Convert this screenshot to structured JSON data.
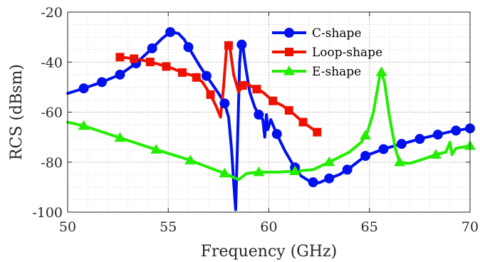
{
  "chart_data": {
    "type": "line",
    "xlabel": "Frequency (GHz)",
    "ylabel": "RCS (dBsm)",
    "xlim": [
      50,
      70
    ],
    "ylim": [
      -100,
      -20
    ],
    "xticks": [
      50,
      55,
      60,
      65,
      70
    ],
    "yticks": [
      -100,
      -80,
      -60,
      -40,
      -20
    ],
    "xtick_labels": [
      "50",
      "55",
      "60",
      "65",
      "70"
    ],
    "ytick_labels": [
      "-100",
      "-80",
      "-60",
      "-40",
      "-20"
    ],
    "grid": "major and minor, dotted",
    "legend_position": "top-right",
    "series": [
      {
        "name": "C-shape",
        "color": "#0011ee",
        "marker": "circle",
        "points": [
          [
            50,
            -52.5
          ],
          [
            50.8,
            -50.5
          ],
          [
            51.7,
            -48
          ],
          [
            52.6,
            -45
          ],
          [
            53.4,
            -40.5
          ],
          [
            54.2,
            -34.5
          ],
          [
            54.7,
            -30.5
          ],
          [
            55.1,
            -28
          ],
          [
            55.5,
            -28.5
          ],
          [
            55.8,
            -31
          ],
          [
            56,
            -34
          ],
          [
            56.3,
            -38
          ],
          [
            56.6,
            -42
          ],
          [
            56.9,
            -45.5
          ],
          [
            57.2,
            -49
          ],
          [
            57.5,
            -52.5
          ],
          [
            57.8,
            -56.5
          ],
          [
            58.0,
            -62
          ],
          [
            58.15,
            -75
          ],
          [
            58.25,
            -88
          ],
          [
            58.35,
            -99
          ],
          [
            58.45,
            -70
          ],
          [
            58.55,
            -40
          ],
          [
            58.62,
            -33
          ],
          [
            58.7,
            -33
          ],
          [
            58.85,
            -42
          ],
          [
            59.05,
            -52
          ],
          [
            59.3,
            -58
          ],
          [
            59.5,
            -61
          ],
          [
            59.7,
            -63
          ],
          [
            59.8,
            -70
          ],
          [
            59.88,
            -61
          ],
          [
            59.95,
            -67
          ],
          [
            60.1,
            -63
          ],
          [
            60.3,
            -67
          ],
          [
            60.5,
            -70.5
          ],
          [
            60.8,
            -75.5
          ],
          [
            61.2,
            -81
          ],
          [
            61.6,
            -85.5
          ],
          [
            62.1,
            -88
          ],
          [
            62.5,
            -88.2
          ],
          [
            63.0,
            -86.5
          ],
          [
            63.5,
            -85
          ],
          [
            64.0,
            -82.5
          ],
          [
            64.8,
            -77.5
          ],
          [
            65.8,
            -74.5
          ],
          [
            66.7,
            -72.5
          ],
          [
            67.6,
            -70.5
          ],
          [
            68.4,
            -69
          ],
          [
            69.2,
            -67.5
          ],
          [
            70,
            -66.5
          ]
        ],
        "marker_x": [
          50.8,
          51.7,
          52.6,
          53.4,
          54.2,
          55.1,
          56.0,
          56.9,
          57.8,
          58.65,
          59.5,
          60.4,
          61.3,
          62.2,
          63.0,
          63.9,
          64.8,
          65.7,
          66.6,
          67.5,
          68.4,
          69.3,
          70.0
        ]
      },
      {
        "name": "Loop-shape",
        "color": "#ee1100",
        "marker": "square",
        "points": [
          [
            52.6,
            -38
          ],
          [
            53.2,
            -38.5
          ],
          [
            53.9,
            -39.5
          ],
          [
            54.6,
            -41
          ],
          [
            55.2,
            -42.5
          ],
          [
            55.8,
            -44.5
          ],
          [
            56.3,
            -45.5
          ],
          [
            56.7,
            -48
          ],
          [
            57.1,
            -53
          ],
          [
            57.4,
            -58
          ],
          [
            57.6,
            -62
          ],
          [
            57.75,
            -50
          ],
          [
            57.9,
            -34
          ],
          [
            58.05,
            -33
          ],
          [
            58.25,
            -45
          ],
          [
            58.5,
            -52
          ],
          [
            58.8,
            -48
          ],
          [
            59.2,
            -50
          ],
          [
            59.7,
            -52
          ],
          [
            60.2,
            -55.5
          ],
          [
            60.7,
            -57.5
          ],
          [
            61.2,
            -60.5
          ],
          [
            61.7,
            -64
          ],
          [
            62.4,
            -68
          ]
        ],
        "marker_x": [
          52.6,
          53.3,
          54.1,
          54.9,
          55.7,
          56.4,
          57.1,
          58.0,
          58.7,
          59.4,
          60.2,
          61.0,
          61.7,
          62.4
        ]
      },
      {
        "name": "E-shape",
        "color": "#22ee00",
        "marker": "triangle",
        "points": [
          [
            50,
            -64
          ],
          [
            50.8,
            -65.5
          ],
          [
            52.5,
            -70
          ],
          [
            54.2,
            -74.5
          ],
          [
            56,
            -79
          ],
          [
            57.8,
            -84.5
          ],
          [
            58.5,
            -87
          ],
          [
            58.9,
            -84.5
          ],
          [
            59.5,
            -84
          ],
          [
            60.5,
            -84
          ],
          [
            61.5,
            -83.5
          ],
          [
            62.2,
            -83
          ],
          [
            63.0,
            -80
          ],
          [
            64.0,
            -76
          ],
          [
            64.6,
            -72
          ],
          [
            64.9,
            -68
          ],
          [
            65.2,
            -60
          ],
          [
            65.5,
            -46
          ],
          [
            65.6,
            -44
          ],
          [
            65.75,
            -48
          ],
          [
            66.0,
            -62
          ],
          [
            66.3,
            -75
          ],
          [
            66.5,
            -80
          ],
          [
            67.0,
            -80.5
          ],
          [
            67.6,
            -79
          ],
          [
            68.3,
            -77
          ],
          [
            68.8,
            -76
          ],
          [
            69.0,
            -72
          ],
          [
            69.1,
            -77
          ],
          [
            69.3,
            -74.5
          ],
          [
            70,
            -73.5
          ]
        ],
        "marker_x": [
          50.8,
          52.6,
          54.4,
          56.1,
          57.8,
          59.5,
          61.3,
          63.0,
          64.8,
          65.6,
          66.5,
          68.3,
          70.0
        ]
      }
    ]
  }
}
